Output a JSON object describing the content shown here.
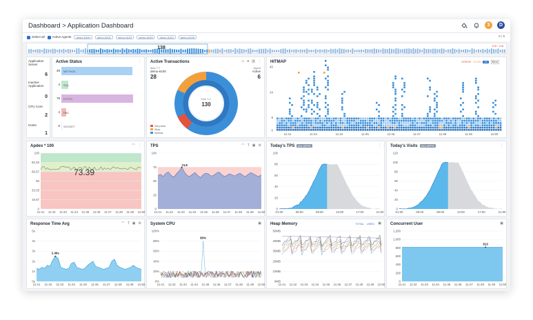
{
  "header": {
    "breadcrumb": "Dashboard > Application Dashboard",
    "notif_badge": "3",
    "avatar_letter": "D"
  },
  "filters": {
    "select_all": "Select all",
    "active_agents": "Active Agents",
    "agents": [
      "demo-6100",
      "demo-6101",
      "demo-6102",
      "demo-6103",
      "demo-6104",
      "demo-6105"
    ],
    "pager": "6 / 6"
  },
  "timeline": {
    "count": "138",
    "range": "105 / 138"
  },
  "status": {
    "labels": [
      "Application Server",
      "Inactive Application",
      "CPU Core",
      "Hosts"
    ],
    "values": [
      "6",
      "0",
      "2",
      "1"
    ]
  },
  "active_status": {
    "title": "Active Status",
    "rows": [
      {
        "value": "49",
        "label": "METHOD",
        "fill": 0.92,
        "color": "#a9d1f3"
      },
      {
        "value": "4",
        "label": "SQL",
        "fill": 0.09,
        "color": "#bfe7cb"
      },
      {
        "value": "79",
        "label": "HTTPC",
        "fill": 0.93,
        "color": "#d8b4e0"
      },
      {
        "value": "2",
        "label": "DBC",
        "fill": 0.06,
        "color": "#f3b7b2"
      },
      {
        "value": "0",
        "label": "SOCKET",
        "fill": 0.0,
        "color": "#e8e8e8"
      }
    ]
  },
  "active_transactions": {
    "title": "Active Transactions",
    "sub_left": "Max T.T",
    "agent": "demo-6100",
    "count_left": "28",
    "sub_right": "Agent",
    "active_label": "Active",
    "count_right": "6",
    "center_label": "Total T.C.",
    "center_value": "130",
    "legend": [
      "Very slow",
      "Slow",
      "Normal"
    ],
    "legend_colors": [
      "#e5533d",
      "#f4a03a",
      "#3b8fd9"
    ]
  },
  "hitmap": {
    "title": "HITMAP",
    "legend": [
      "ERROR",
      "SLOW",
      "All",
      "Error"
    ],
    "y_ticks": [
      "40",
      "24",
      "8",
      "0"
    ],
    "x_ticks": [
      "11:41",
      "11:43",
      "11:44",
      "11:45",
      "11:46",
      "11:47",
      "11:48",
      "11:49",
      "11:50"
    ]
  },
  "apdex": {
    "title": "Apdex * 100",
    "value": "73.39",
    "y_ticks": [
      "100",
      "83.33",
      "66.67",
      "50",
      "33.33",
      "16.67",
      "0"
    ],
    "x_ticks": [
      "11:41",
      "11:42",
      "11:43",
      "11:44",
      "11:45",
      "11:46",
      "11:47",
      "11:48",
      "11:49",
      "11:50"
    ]
  },
  "tps": {
    "title": "TPS",
    "peak": "74.8",
    "y_ticks": [
      "100",
      "75",
      "50",
      "25",
      "0"
    ],
    "x_ticks": [
      "11:41",
      "11:42",
      "11:43",
      "11:44",
      "11:45",
      "11:46",
      "11:47",
      "11:48",
      "11:49",
      "11:50"
    ],
    "series": [
      60,
      62,
      58,
      64,
      66,
      60,
      57,
      63,
      68,
      74.8,
      66,
      60,
      58,
      62,
      65,
      60,
      56,
      61,
      64,
      63,
      59,
      60,
      64,
      66,
      62,
      58,
      60,
      63,
      61,
      59,
      62,
      64,
      60,
      58,
      62,
      65,
      63,
      60,
      58,
      61
    ]
  },
  "todays_tps": {
    "title": "Today's TPS",
    "badge": "ALL APPS",
    "y_ticks": [
      "100",
      "80",
      "60",
      "40",
      "20",
      "0"
    ],
    "x_ticks": [
      "01:00",
      "05:00",
      "09:00",
      "13:00",
      "17:00",
      "21:00"
    ]
  },
  "todays_visits": {
    "title": "Today's Visits",
    "badge": "ALL APPS",
    "y_ticks": [
      "120",
      "100",
      "80",
      "60",
      "40",
      "20",
      "0"
    ],
    "x_ticks": [
      "01:00",
      "05:00",
      "09:00",
      "13:00",
      "17:00",
      "21:00"
    ]
  },
  "response_time": {
    "title": "Response Time Avg",
    "peak": "2.49s",
    "y_ticks": [
      "5s",
      "4s",
      "3s",
      "2s",
      "1s",
      "0s"
    ],
    "x_ticks": [
      "11:41",
      "11:42",
      "11:43",
      "11:44",
      "11:45",
      "11:46",
      "11:47",
      "11:48",
      "11:49",
      "11:50"
    ],
    "series": [
      1.3,
      1.2,
      1.4,
      1.3,
      1.6,
      1.5,
      2.1,
      2.49,
      2.3,
      1.4,
      1.3,
      1.2,
      1.3,
      1.8,
      1.9,
      1.4,
      1.3,
      1.2,
      1.3,
      1.6,
      1.8,
      2.0,
      1.5,
      1.4,
      1.3,
      1.2,
      1.3,
      1.4,
      2.0,
      2.2,
      1.6,
      1.4,
      1.3,
      1.2,
      1.3,
      1.4,
      1.6,
      1.4,
      1.3,
      1.2
    ]
  },
  "system_cpu": {
    "title": "System CPU",
    "peak": "80%",
    "y_ticks": [
      "100%",
      "80%",
      "60%",
      "40%",
      "20%",
      "0%"
    ],
    "x_ticks": [
      "11:41",
      "11:42",
      "11:43",
      "11:44",
      "11:45",
      "11:46",
      "11:47",
      "11:48",
      "11:49",
      "11:50"
    ]
  },
  "heap_memory": {
    "title": "Heap Memory",
    "total": "TOTAL",
    "used": "USED",
    "y_ticks": [
      "50MB",
      "40MB",
      "30MB",
      "20MB",
      "10MB",
      "0MB"
    ],
    "x_ticks": [
      "11:41",
      "11:42",
      "11:43",
      "11:44",
      "11:45",
      "11:46",
      "11:47",
      "11:48",
      "11:49",
      "11:50"
    ]
  },
  "concurrent_user": {
    "title": "Concurrent User",
    "peak": "813",
    "value_fraction": 0.813,
    "y_ticks": [
      "1,200",
      "1,000",
      "800",
      "600",
      "400",
      "200",
      "0"
    ],
    "x_ticks": [
      "11:41",
      "11:42",
      "11:43",
      "11:44",
      "11:45",
      "11:46",
      "11:47",
      "11:48",
      "11:49",
      "11:50"
    ]
  }
}
